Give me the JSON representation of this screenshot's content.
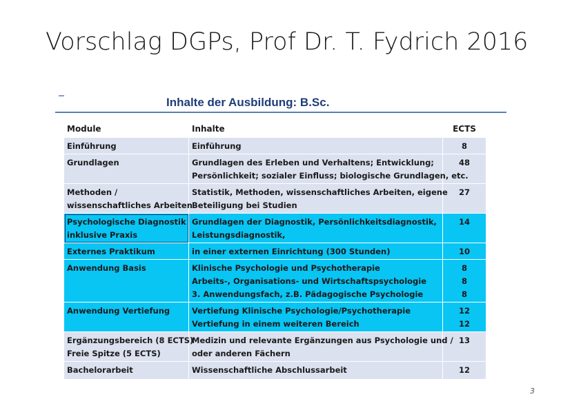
{
  "slide": {
    "title": "Vorschlag DGPs, Prof Dr. T. Fydrich 2016",
    "page_number": "3"
  },
  "table": {
    "heading": "Inhalte der Ausbildung: B.Sc.",
    "columns": {
      "module": "Module",
      "inhalte": "Inhalte",
      "ects": "ECTS"
    },
    "rows": [
      {
        "module": [
          "Einführung"
        ],
        "inhalte": [
          "Einführung"
        ],
        "ects": [
          "8"
        ]
      },
      {
        "module": [
          "Grundlagen"
        ],
        "inhalte": [
          "Grundlagen des Erleben und Verhaltens; Entwicklung;",
          "Persönlichkeit; sozialer Einfluss; biologische Grundlagen, etc."
        ],
        "ects": [
          "48"
        ]
      },
      {
        "module": [
          "Methoden /",
          "wissenschaftliches Arbeiten"
        ],
        "inhalte": [
          "Statistik, Methoden, wissenschaftliches Arbeiten, eigene",
          "Beteiligung bei Studien"
        ],
        "ects": [
          "27"
        ]
      },
      {
        "module": [
          "Psychologische Diagnostik",
          "inklusive Praxis"
        ],
        "inhalte": [
          "Grundlagen der Diagnostik, Persönlichkeitsdiagnostik,",
          "Leistungsdiagnostik,"
        ],
        "ects": [
          "14"
        ]
      },
      {
        "module": [
          "Externes Praktikum"
        ],
        "inhalte": [
          "in einer externen Einrichtung (300 Stunden)"
        ],
        "ects": [
          "10"
        ]
      },
      {
        "module": [
          "Anwendung Basis"
        ],
        "inhalte": [
          "Klinische Psychologie und Psychotherapie",
          "Arbeits-, Organisations- und Wirtschaftspsychologie",
          "3. Anwendungsfach, z.B. Pädagogische Psychologie"
        ],
        "ects": [
          "8",
          "8",
          "8"
        ]
      },
      {
        "module": [
          "Anwendung Vertiefung"
        ],
        "inhalte": [
          "Vertiefung Klinische Psychologie/Psychotherapie",
          "Vertiefung in einem weiteren Bereich"
        ],
        "ects": [
          "12",
          "12"
        ]
      },
      {
        "module": [
          "Ergänzungsbereich (8 ECTS)",
          "Freie Spitze (5 ECTS)"
        ],
        "inhalte": [
          "Medizin und relevante Ergänzungen aus Psychologie und /",
          "oder  anderen Fächern"
        ],
        "ects": [
          "13"
        ]
      },
      {
        "module": [
          "Bachelorarbeit"
        ],
        "inhalte": [
          "Wissenschaftliche Abschlussarbeit"
        ],
        "ects": [
          "12"
        ]
      }
    ]
  },
  "colors": {
    "row_gray": "#dbe1ef",
    "row_blue": "#08c5f4",
    "heading": "#1f3d78"
  }
}
